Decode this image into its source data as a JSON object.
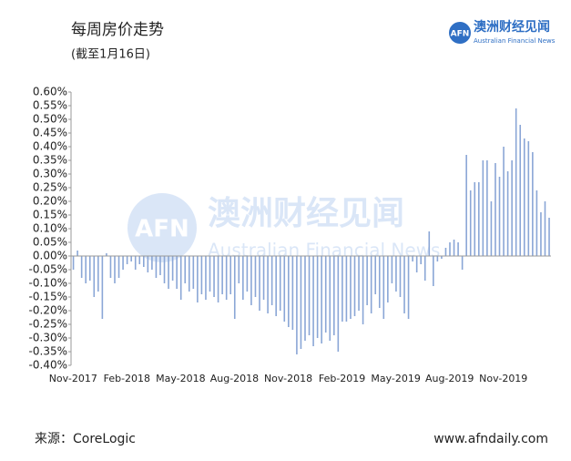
{
  "header": {
    "title": "每周房价走势",
    "subtitle": "(截至1月16日)"
  },
  "logo": {
    "mark": "AFN",
    "name_cn": "澳洲财经见闻",
    "name_en": "Australian Financial News"
  },
  "chart_data": {
    "type": "bar",
    "color": "#8aa6d6",
    "categories": [
      "Nov-2017",
      null,
      null,
      null,
      null,
      null,
      null,
      null,
      null,
      null,
      null,
      null,
      null,
      "Feb-2018",
      null,
      null,
      null,
      null,
      null,
      null,
      null,
      null,
      null,
      null,
      null,
      null,
      "May-2018",
      null,
      null,
      null,
      null,
      null,
      null,
      null,
      null,
      null,
      null,
      null,
      null,
      "Aug-2018",
      null,
      null,
      null,
      null,
      null,
      null,
      null,
      null,
      null,
      null,
      null,
      null,
      "Nov-2018",
      null,
      null,
      null,
      null,
      null,
      null,
      null,
      null,
      null,
      null,
      null,
      null,
      "Feb-2019",
      null,
      null,
      null,
      null,
      null,
      null,
      null,
      null,
      null,
      null,
      null,
      null,
      "May-2019",
      null,
      null,
      null,
      null,
      null,
      null,
      null,
      null,
      null,
      null,
      null,
      null,
      "Aug-2019",
      null,
      null,
      null,
      null,
      null,
      null,
      null,
      null,
      null,
      null,
      null,
      null,
      "Nov-2019",
      null,
      null,
      null,
      null,
      null,
      null,
      null,
      null,
      null,
      null,
      null
    ],
    "values": [
      -0.05,
      0.02,
      -0.08,
      -0.1,
      -0.09,
      -0.15,
      -0.13,
      -0.23,
      0.01,
      -0.08,
      -0.1,
      -0.08,
      -0.05,
      -0.03,
      -0.02,
      -0.05,
      -0.03,
      -0.04,
      -0.06,
      -0.05,
      -0.08,
      -0.07,
      -0.1,
      -0.12,
      -0.09,
      -0.12,
      -0.16,
      -0.1,
      -0.13,
      -0.12,
      -0.17,
      -0.14,
      -0.16,
      -0.13,
      -0.15,
      -0.17,
      -0.14,
      -0.16,
      -0.14,
      -0.23,
      -0.1,
      -0.16,
      -0.13,
      -0.18,
      -0.15,
      -0.2,
      -0.16,
      -0.21,
      -0.18,
      -0.22,
      -0.2,
      -0.24,
      -0.26,
      -0.27,
      -0.36,
      -0.34,
      -0.31,
      -0.29,
      -0.33,
      -0.3,
      -0.32,
      -0.28,
      -0.31,
      -0.29,
      -0.35,
      -0.24,
      -0.24,
      -0.23,
      -0.22,
      -0.2,
      -0.25,
      -0.18,
      -0.21,
      -0.14,
      -0.19,
      -0.23,
      -0.17,
      -0.1,
      -0.13,
      -0.15,
      -0.21,
      -0.23,
      -0.02,
      -0.06,
      -0.03,
      -0.09,
      0.09,
      -0.11,
      -0.02,
      -0.01,
      0.03,
      0.05,
      0.06,
      0.05,
      -0.05,
      0.37,
      0.24,
      0.27,
      0.27,
      0.35,
      0.35,
      0.2,
      0.34,
      0.29,
      0.4,
      0.31,
      0.35,
      0.54,
      0.48,
      0.43,
      0.42,
      0.38,
      0.24,
      0.16,
      0.2,
      0.14
    ],
    "ylim": [
      -0.4,
      0.6
    ],
    "yticks": [
      {
        "value": -0.4,
        "label": "-0.40%"
      },
      {
        "value": -0.35,
        "label": "-0.35%"
      },
      {
        "value": -0.3,
        "label": "-0.30%"
      },
      {
        "value": -0.25,
        "label": "-0.25%"
      },
      {
        "value": -0.2,
        "label": "-0.20%"
      },
      {
        "value": -0.15,
        "label": "-0.15%"
      },
      {
        "value": -0.1,
        "label": "-0.10%"
      },
      {
        "value": -0.05,
        "label": "-0.05%"
      },
      {
        "value": 0,
        "label": "0.00%"
      },
      {
        "value": 0.05,
        "label": "0.05%"
      },
      {
        "value": 0.1,
        "label": "0.10%"
      },
      {
        "value": 0.15,
        "label": "0.15%"
      },
      {
        "value": 0.2,
        "label": "0.20%"
      },
      {
        "value": 0.25,
        "label": "0.25%"
      },
      {
        "value": 0.3,
        "label": "0.30%"
      },
      {
        "value": 0.35,
        "label": "0.35%"
      },
      {
        "value": 0.4,
        "label": "0.40%"
      },
      {
        "value": 0.45,
        "label": "0.45%"
      },
      {
        "value": 0.5,
        "label": "0.50%"
      },
      {
        "value": 0.55,
        "label": "0.55%"
      },
      {
        "value": 0.6,
        "label": "0.60%"
      }
    ],
    "grid": false
  },
  "footer": {
    "source": "来源：CoreLogic",
    "site": "www.afndaily.com"
  }
}
